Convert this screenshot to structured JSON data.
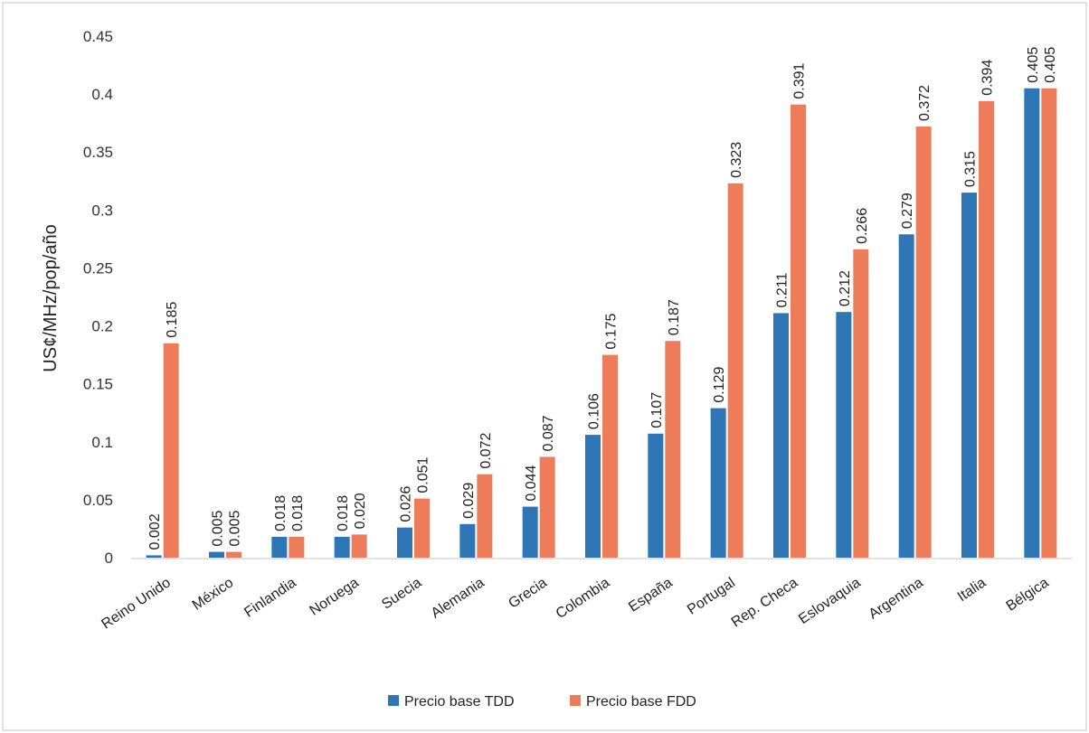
{
  "chart_data": {
    "type": "bar",
    "title": "",
    "xlabel": "",
    "ylabel": "US¢/MHz/pop/año",
    "ylim": [
      0,
      0.45
    ],
    "yticks": [
      0,
      0.05,
      0.1,
      0.15,
      0.2,
      0.25,
      0.3,
      0.35,
      0.4,
      0.45
    ],
    "ytick_labels": [
      "0",
      "0.05",
      "0.1",
      "0.15",
      "0.2",
      "0.25",
      "0.3",
      "0.35",
      "0.4",
      "0.45"
    ],
    "grid": false,
    "legend_position": "bottom",
    "categories": [
      "Reino Unido",
      "México",
      "Finlandia",
      "Noruega",
      "Suecia",
      "Alemania",
      "Grecia",
      "Colombia",
      "España",
      "Portugal",
      "Rep. Checa",
      "Eslovaquia",
      "Argentina",
      "Italia",
      "Bélgica"
    ],
    "series": [
      {
        "name": "Precio base TDD",
        "color": "#2E75B6",
        "values": [
          0.002,
          0.005,
          0.018,
          0.018,
          0.026,
          0.029,
          0.044,
          0.106,
          0.107,
          0.129,
          0.211,
          0.212,
          0.279,
          0.315,
          0.405
        ],
        "labels": [
          "0.002",
          "0.005",
          "0.018",
          "0.018",
          "0.026",
          "0.029",
          "0.044",
          "0.106",
          "0.107",
          "0.129",
          "0.211",
          "0.212",
          "0.279",
          "0.315",
          "0.405"
        ]
      },
      {
        "name": "Precio base FDD",
        "color": "#ED7D5A",
        "values": [
          0.185,
          0.005,
          0.018,
          0.02,
          0.051,
          0.072,
          0.087,
          0.175,
          0.187,
          0.323,
          0.391,
          0.266,
          0.372,
          0.394,
          0.405
        ],
        "labels": [
          "0.185",
          "0.005",
          "0.018",
          "0.020",
          "0.051",
          "0.072",
          "0.087",
          "0.175",
          "0.187",
          "0.323",
          "0.391",
          "0.266",
          "0.372",
          "0.394",
          "0.405"
        ]
      }
    ]
  }
}
